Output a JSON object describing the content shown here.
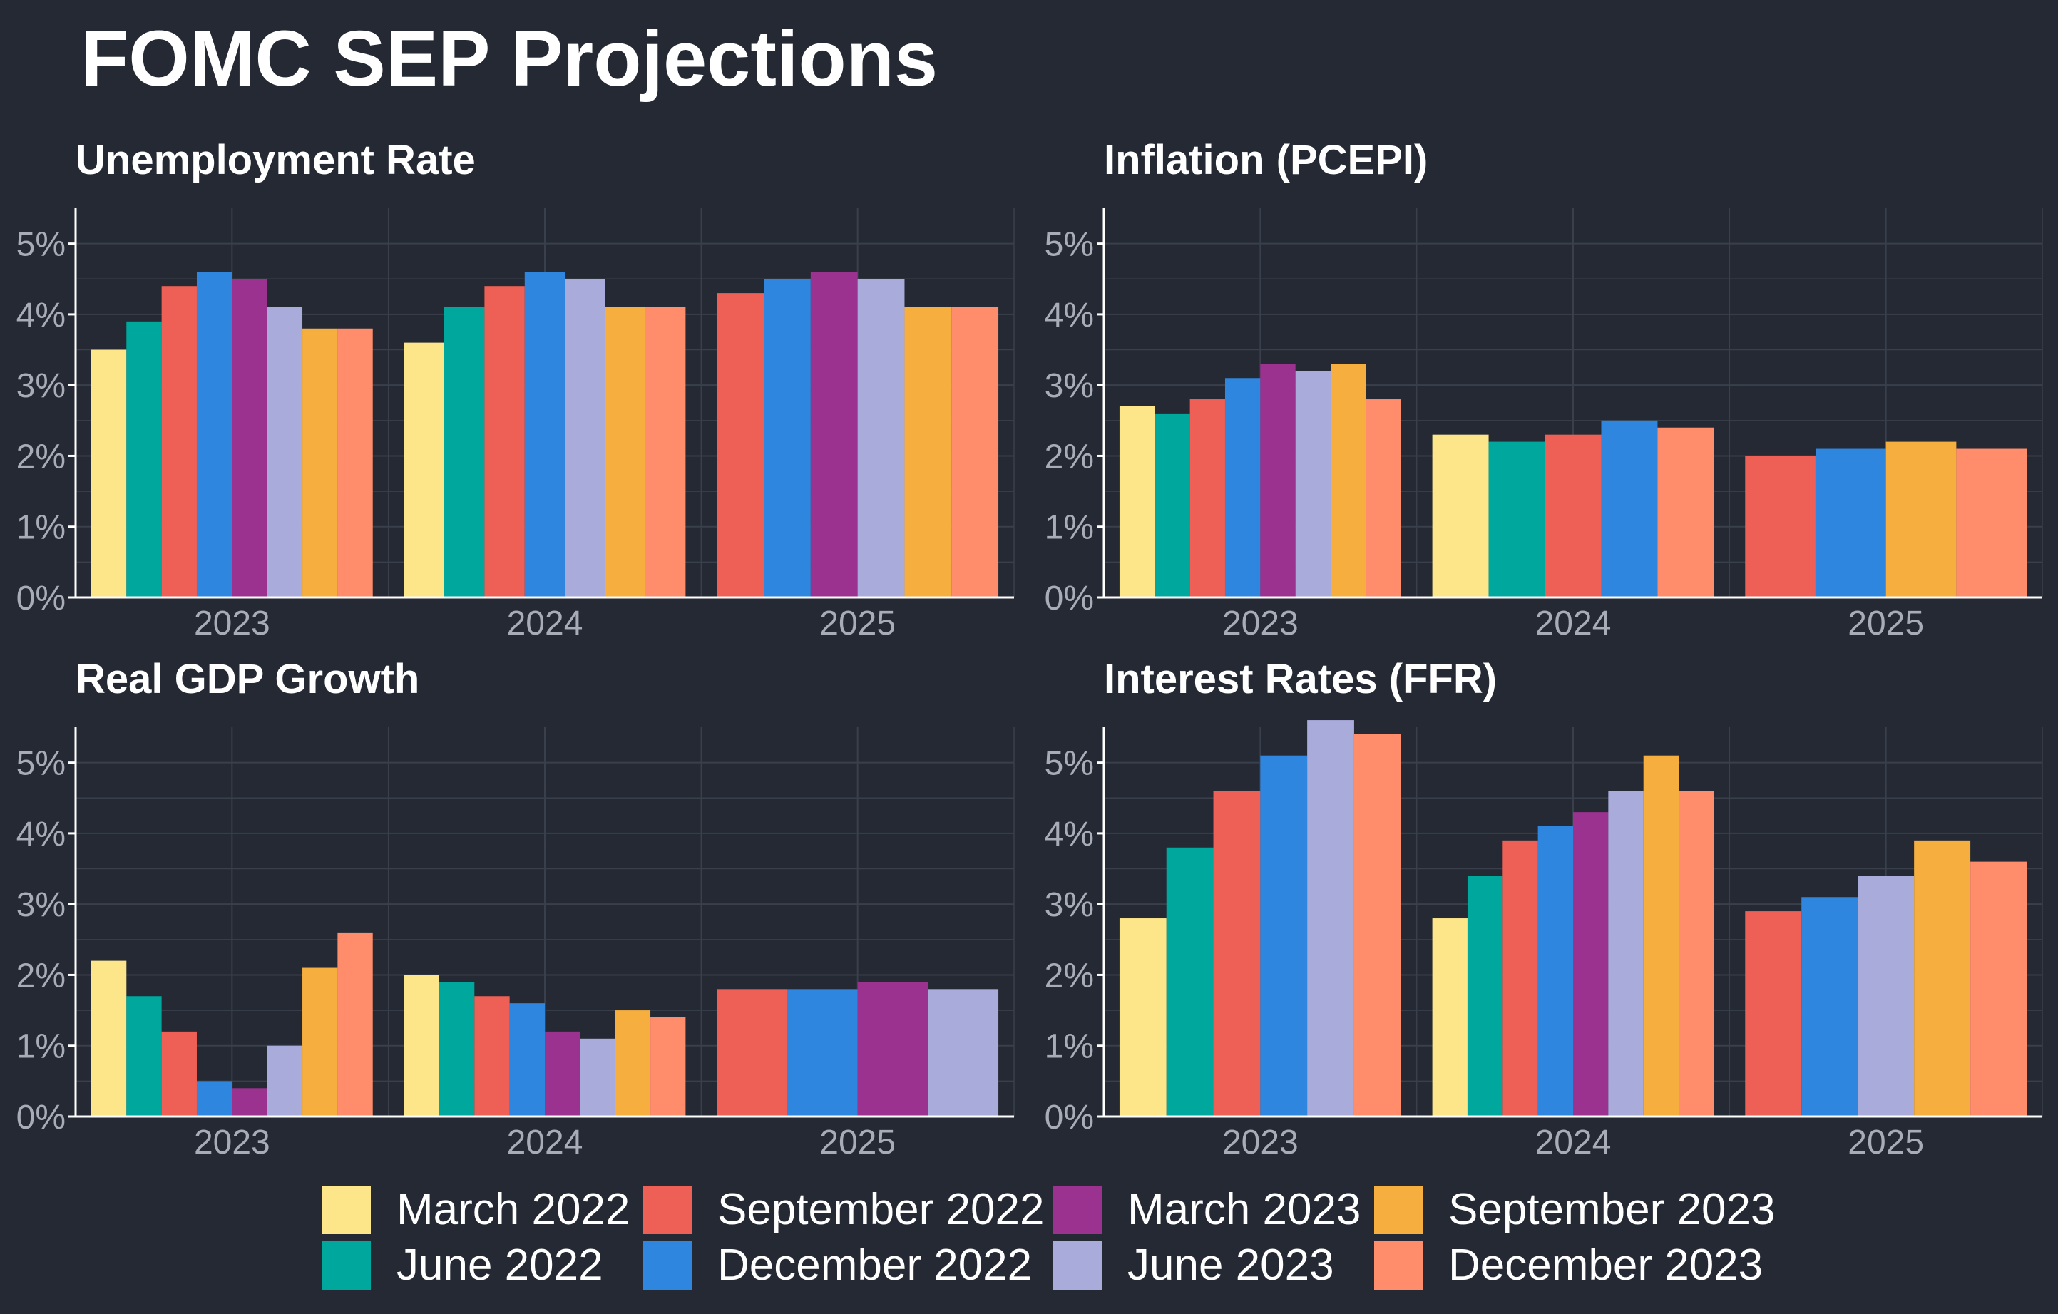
{
  "title": "FOMC SEP Projections",
  "colors": {
    "background": "#242933",
    "grid": "#3a404b",
    "axis": "#ffffff",
    "tick_text": "#a7acb6",
    "title_text": "#ffffff"
  },
  "legend": [
    {
      "label": "March 2022",
      "color": "#FDE68A"
    },
    {
      "label": "June 2022",
      "color": "#00A79D"
    },
    {
      "label": "September 2022",
      "color": "#EE6055"
    },
    {
      "label": "December 2022",
      "color": "#2E86DE"
    },
    {
      "label": "March 2023",
      "color": "#9B3290"
    },
    {
      "label": "June 2023",
      "color": "#A9ABDA"
    },
    {
      "label": "September 2023",
      "color": "#F6AE3F"
    },
    {
      "label": "December 2023",
      "color": "#FF8C6B"
    }
  ],
  "chart_data": [
    {
      "type": "bar",
      "title": "Unemployment Rate",
      "categories": [
        "2023",
        "2024",
        "2025"
      ],
      "ylim": [
        0,
        5.5
      ],
      "yticks": [
        0,
        1,
        2,
        3,
        4,
        5
      ],
      "ytick_labels": [
        "0%",
        "1%",
        "2%",
        "3%",
        "4%",
        "5%"
      ],
      "grid": true,
      "series": [
        {
          "name": "March 2022",
          "values": [
            3.5,
            3.6,
            null
          ]
        },
        {
          "name": "June 2022",
          "values": [
            3.9,
            4.1,
            null
          ]
        },
        {
          "name": "September 2022",
          "values": [
            4.4,
            4.4,
            4.3
          ]
        },
        {
          "name": "December 2022",
          "values": [
            4.6,
            4.6,
            4.5
          ]
        },
        {
          "name": "March 2023",
          "values": [
            4.5,
            null,
            4.6
          ]
        },
        {
          "name": "June 2023",
          "values": [
            4.1,
            4.5,
            4.5
          ]
        },
        {
          "name": "September 2023",
          "values": [
            3.8,
            4.1,
            4.1
          ]
        },
        {
          "name": "December 2023",
          "values": [
            3.8,
            4.1,
            4.1
          ]
        }
      ]
    },
    {
      "type": "bar",
      "title": "Inflation (PCEPI)",
      "categories": [
        "2023",
        "2024",
        "2025"
      ],
      "ylim": [
        0,
        5.5
      ],
      "yticks": [
        0,
        1,
        2,
        3,
        4,
        5
      ],
      "ytick_labels": [
        "0%",
        "1%",
        "2%",
        "3%",
        "4%",
        "5%"
      ],
      "grid": true,
      "series": [
        {
          "name": "March 2022",
          "values": [
            2.7,
            2.3,
            null
          ]
        },
        {
          "name": "June 2022",
          "values": [
            2.6,
            2.2,
            null
          ]
        },
        {
          "name": "September 2022",
          "values": [
            2.8,
            2.3,
            2.0
          ]
        },
        {
          "name": "December 2022",
          "values": [
            3.1,
            2.5,
            2.1
          ]
        },
        {
          "name": "March 2023",
          "values": [
            3.3,
            null,
            null
          ]
        },
        {
          "name": "June 2023",
          "values": [
            3.2,
            null,
            null
          ]
        },
        {
          "name": "September 2023",
          "values": [
            3.3,
            null,
            2.2
          ]
        },
        {
          "name": "December 2023",
          "values": [
            2.8,
            2.4,
            2.1
          ]
        }
      ]
    },
    {
      "type": "bar",
      "title": "Real GDP Growth",
      "categories": [
        "2023",
        "2024",
        "2025"
      ],
      "ylim": [
        0,
        5.5
      ],
      "yticks": [
        0,
        1,
        2,
        3,
        4,
        5
      ],
      "ytick_labels": [
        "0%",
        "1%",
        "2%",
        "3%",
        "4%",
        "5%"
      ],
      "grid": true,
      "series": [
        {
          "name": "March 2022",
          "values": [
            2.2,
            2.0,
            null
          ]
        },
        {
          "name": "June 2022",
          "values": [
            1.7,
            1.9,
            null
          ]
        },
        {
          "name": "September 2022",
          "values": [
            1.2,
            1.7,
            1.8
          ]
        },
        {
          "name": "December 2022",
          "values": [
            0.5,
            1.6,
            1.8
          ]
        },
        {
          "name": "March 2023",
          "values": [
            0.4,
            1.2,
            1.9
          ]
        },
        {
          "name": "June 2023",
          "values": [
            1.0,
            1.1,
            1.8
          ]
        },
        {
          "name": "September 2023",
          "values": [
            2.1,
            1.5,
            null
          ]
        },
        {
          "name": "December 2023",
          "values": [
            2.6,
            1.4,
            null
          ]
        }
      ]
    },
    {
      "type": "bar",
      "title": "Interest Rates (FFR)",
      "categories": [
        "2023",
        "2024",
        "2025"
      ],
      "ylim": [
        0,
        5.5
      ],
      "yticks": [
        0,
        1,
        2,
        3,
        4,
        5
      ],
      "ytick_labels": [
        "0%",
        "1%",
        "2%",
        "3%",
        "4%",
        "5%"
      ],
      "grid": true,
      "series": [
        {
          "name": "March 2022",
          "values": [
            2.8,
            2.8,
            null
          ]
        },
        {
          "name": "June 2022",
          "values": [
            3.8,
            3.4,
            null
          ]
        },
        {
          "name": "September 2022",
          "values": [
            4.6,
            3.9,
            2.9
          ]
        },
        {
          "name": "December 2022",
          "values": [
            5.1,
            4.1,
            3.1
          ]
        },
        {
          "name": "March 2023",
          "values": [
            null,
            4.3,
            null
          ]
        },
        {
          "name": "June 2023",
          "values": [
            5.6,
            4.6,
            3.4
          ]
        },
        {
          "name": "September 2023",
          "values": [
            null,
            5.1,
            3.9
          ]
        },
        {
          "name": "December 2023",
          "values": [
            5.4,
            4.6,
            3.6
          ]
        }
      ]
    }
  ]
}
